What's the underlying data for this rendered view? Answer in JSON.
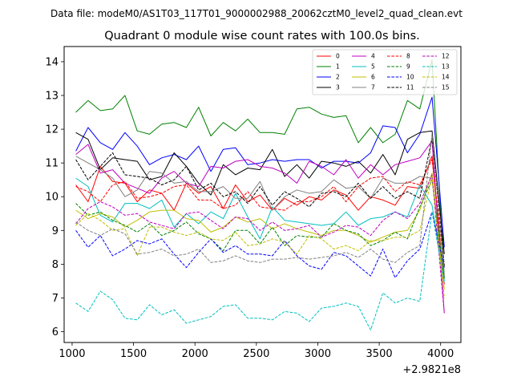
{
  "figure": {
    "suptitle": "Data file: modeM0/AS1T03_117T01_9000002988_20062cztM0_level2_quad_clean.evt",
    "x_offset_label": "+2.9821e8"
  },
  "chart_data": {
    "type": "line",
    "title": "Quadrant 0 module wise count rates with 100.0s bins.",
    "xlabel": "",
    "ylabel": "",
    "xlim": [
      935,
      4165
    ],
    "ylim": [
      5.68,
      14.45
    ],
    "xticks": [
      1000,
      1500,
      2000,
      2500,
      3000,
      3500,
      4000
    ],
    "yticks": [
      6,
      7,
      8,
      9,
      10,
      11,
      12,
      13,
      14
    ],
    "legend_position": "upper right",
    "legend_columns": 4,
    "x": [
      1030,
      1130,
      1230,
      1330,
      1430,
      1530,
      1630,
      1730,
      1830,
      1930,
      2030,
      2130,
      2230,
      2330,
      2430,
      2530,
      2630,
      2730,
      2830,
      2930,
      3030,
      3130,
      3230,
      3330,
      3430,
      3530,
      3630,
      3730,
      3830,
      3930,
      4030
    ],
    "series": [
      {
        "name": "0",
        "color": "#ff0000",
        "dash": "solid",
        "values": [
          10.35,
          9.85,
          10.9,
          10.45,
          10.4,
          9.85,
          10.2,
          10.1,
          9.6,
          10.4,
          10.1,
          10.3,
          9.65,
          10.35,
          9.85,
          10.05,
          9.6,
          9.95,
          9.75,
          10.0,
          9.9,
          10.2,
          10.05,
          9.6,
          10.0,
          9.9,
          9.75,
          10.3,
          10.25,
          11.2,
          7.4
        ]
      },
      {
        "name": "1",
        "color": "#008000",
        "dash": "solid",
        "values": [
          12.5,
          12.85,
          12.55,
          12.6,
          13.0,
          11.95,
          11.85,
          12.15,
          12.2,
          12.05,
          12.65,
          11.8,
          12.2,
          11.95,
          12.3,
          11.9,
          11.9,
          11.85,
          12.6,
          12.65,
          12.45,
          12.35,
          12.4,
          11.6,
          12.05,
          11.6,
          11.85,
          12.85,
          12.6,
          14.05,
          7.6
        ]
      },
      {
        "name": "2",
        "color": "#0000ff",
        "dash": "solid",
        "values": [
          11.35,
          12.05,
          11.6,
          11.4,
          11.9,
          11.5,
          10.95,
          11.15,
          11.25,
          11.1,
          11.5,
          10.75,
          11.4,
          11.45,
          10.95,
          11.0,
          11.1,
          11.05,
          11.1,
          11.1,
          10.85,
          11.05,
          11.05,
          11.0,
          11.3,
          12.1,
          12.05,
          11.3,
          11.85,
          12.95,
          8.5
        ]
      },
      {
        "name": "3",
        "color": "#000000",
        "dash": "solid",
        "values": [
          11.9,
          11.7,
          10.8,
          11.15,
          11.1,
          11.05,
          10.5,
          10.6,
          11.3,
          10.9,
          10.4,
          10.05,
          10.95,
          10.65,
          10.85,
          10.8,
          11.4,
          10.6,
          10.95,
          10.55,
          11.05,
          11.0,
          10.9,
          11.05,
          10.7,
          11.25,
          10.65,
          11.7,
          11.9,
          11.95,
          8.3
        ]
      },
      {
        "name": "4",
        "color": "#bf00bf",
        "dash": "solid",
        "values": [
          11.25,
          11.55,
          10.7,
          10.8,
          10.4,
          10.25,
          10.1,
          10.55,
          10.75,
          10.4,
          10.3,
          10.9,
          10.85,
          11.05,
          11.1,
          10.9,
          10.85,
          10.7,
          10.4,
          11.05,
          10.9,
          10.65,
          11.1,
          10.55,
          10.95,
          10.65,
          10.95,
          11.05,
          11.15,
          11.65,
          6.55
        ]
      },
      {
        "name": "5",
        "color": "#00bfbf",
        "dash": "solid",
        "values": [
          10.55,
          10.3,
          9.45,
          9.25,
          9.8,
          9.8,
          9.65,
          9.9,
          9.1,
          9.5,
          9.2,
          9.55,
          9.35,
          10.1,
          9.4,
          8.75,
          9.7,
          9.3,
          9.25,
          9.2,
          9.15,
          9.2,
          9.55,
          9.15,
          9.35,
          9.4,
          9.55,
          9.4,
          10.35,
          9.75,
          7.5
        ]
      },
      {
        "name": "6",
        "color": "#bfbf00",
        "dash": "solid",
        "values": [
          9.6,
          9.35,
          9.5,
          9.4,
          9.1,
          9.3,
          9.55,
          9.6,
          9.6,
          9.35,
          9.3,
          8.95,
          9.1,
          9.4,
          9.25,
          9.35,
          9.05,
          9.2,
          9.05,
          8.95,
          8.85,
          9.0,
          9.0,
          8.85,
          8.65,
          8.8,
          8.95,
          9.0,
          9.6,
          10.7,
          7.25
        ]
      },
      {
        "name": "7",
        "color": "#808080",
        "dash": "solid",
        "values": [
          11.2,
          11.0,
          10.8,
          10.55,
          10.0,
          10.2,
          10.75,
          10.7,
          10.4,
          10.45,
          10.15,
          10.15,
          10.3,
          9.95,
          9.95,
          10.45,
          9.6,
          10.0,
          10.2,
          10.1,
          10.15,
          10.5,
          10.25,
          10.3,
          9.95,
          10.55,
          10.4,
          10.4,
          10.6,
          10.55,
          7.6
        ]
      },
      {
        "name": "8",
        "color": "#ff0000",
        "dash": "dashed",
        "values": [
          10.3,
          10.15,
          9.85,
          10.35,
          10.45,
          9.95,
          10.0,
          10.1,
          10.3,
          10.35,
          9.9,
          9.9,
          9.65,
          9.75,
          10.15,
          9.7,
          9.65,
          9.6,
          9.85,
          9.85,
          10.0,
          10.3,
          9.85,
          10.3,
          10.55,
          10.6,
          10.15,
          10.45,
          10.35,
          11.1,
          7.9
        ]
      },
      {
        "name": "9",
        "color": "#008000",
        "dash": "dashed",
        "values": [
          9.8,
          9.45,
          9.55,
          9.3,
          9.15,
          8.95,
          9.2,
          8.85,
          9.0,
          9.25,
          8.9,
          8.75,
          8.4,
          9.0,
          9.0,
          8.6,
          9.1,
          8.55,
          8.85,
          8.8,
          8.8,
          9.2,
          9.0,
          8.9,
          8.55,
          8.7,
          8.95,
          8.75,
          9.7,
          10.5,
          7.55
        ]
      },
      {
        "name": "10",
        "color": "#0000ff",
        "dash": "dashed",
        "values": [
          9.0,
          8.5,
          8.85,
          8.25,
          8.45,
          8.7,
          8.6,
          8.75,
          8.3,
          7.9,
          8.35,
          8.75,
          8.35,
          8.55,
          8.3,
          8.3,
          8.25,
          8.7,
          8.25,
          7.95,
          7.85,
          8.35,
          8.25,
          7.95,
          7.65,
          8.45,
          7.6,
          8.1,
          8.45,
          9.55,
          7.9
        ]
      },
      {
        "name": "11",
        "color": "#000000",
        "dash": "dashed",
        "values": [
          11.1,
          10.5,
          10.9,
          11.3,
          10.65,
          10.6,
          10.55,
          10.35,
          10.5,
          10.9,
          10.2,
          10.4,
          10.0,
          10.15,
          9.8,
          10.3,
          9.75,
          10.15,
          9.95,
          9.7,
          10.1,
          10.15,
          10.0,
          10.4,
          9.95,
          10.3,
          9.95,
          10.15,
          9.95,
          11.75,
          7.95
        ]
      },
      {
        "name": "12",
        "color": "#bf00bf",
        "dash": "dashed",
        "values": [
          9.2,
          9.65,
          9.85,
          9.7,
          9.45,
          9.5,
          9.25,
          9.15,
          9.05,
          9.5,
          9.55,
          9.3,
          9.05,
          9.4,
          9.35,
          9.0,
          9.25,
          9.0,
          9.05,
          9.15,
          8.8,
          8.95,
          9.15,
          9.1,
          8.85,
          9.3,
          9.55,
          9.35,
          9.8,
          10.65,
          6.55
        ]
      },
      {
        "name": "13",
        "color": "#00bfbf",
        "dash": "dashed",
        "values": [
          6.85,
          6.6,
          7.2,
          6.95,
          6.4,
          6.35,
          6.8,
          6.5,
          6.65,
          6.25,
          6.35,
          6.45,
          6.75,
          6.8,
          6.4,
          6.4,
          6.35,
          6.6,
          6.55,
          6.3,
          6.7,
          6.75,
          6.85,
          6.75,
          6.05,
          7.15,
          6.85,
          7.0,
          6.9,
          9.55,
          7.45
        ]
      },
      {
        "name": "14",
        "color": "#bfbf00",
        "dash": "dashed",
        "values": [
          9.15,
          9.5,
          9.3,
          9.0,
          9.05,
          8.25,
          9.1,
          9.1,
          8.95,
          8.85,
          8.95,
          8.75,
          8.7,
          8.95,
          8.55,
          8.6,
          8.75,
          8.65,
          8.3,
          8.85,
          8.75,
          8.45,
          8.55,
          8.4,
          8.7,
          8.7,
          8.8,
          8.8,
          9.0,
          10.6,
          7.0
        ]
      },
      {
        "name": "15",
        "color": "#808080",
        "dash": "dashed",
        "values": [
          9.25,
          9.0,
          8.85,
          9.05,
          8.9,
          8.3,
          8.35,
          8.45,
          8.25,
          8.3,
          8.45,
          8.05,
          8.1,
          8.25,
          8.1,
          8.05,
          8.15,
          8.15,
          8.2,
          8.15,
          8.2,
          8.25,
          8.35,
          8.2,
          8.45,
          8.15,
          8.05,
          8.35,
          8.55,
          11.85,
          7.7
        ]
      }
    ]
  }
}
